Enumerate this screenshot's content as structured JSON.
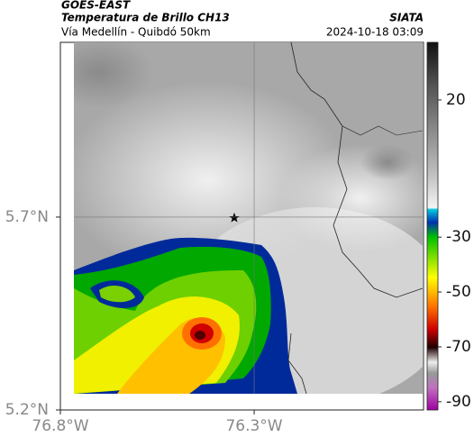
{
  "header": {
    "satellite": "GOES-EAST",
    "product": "Temperatura de Brillo CH13",
    "route": "Vía Medellín - Quibdó 50km",
    "source": "SIATA",
    "datetime": "2024-10-18 03:09"
  },
  "map": {
    "lonlim": [
      -76.8,
      -75.863
    ],
    "latlim": [
      5.2,
      6.153
    ],
    "lonticks": [
      {
        "value": -76.8,
        "label": "76.8°W"
      },
      {
        "value": -76.3,
        "label": "76.3°W"
      }
    ],
    "latticks": [
      {
        "value": 5.7,
        "label": "5.7°N"
      },
      {
        "value": 5.2,
        "label": "5.2°N"
      }
    ],
    "colorbar": {
      "clim": [
        41,
        -93
      ],
      "ticks": [
        20,
        -30,
        -50,
        -70,
        -90
      ]
    }
  }
}
